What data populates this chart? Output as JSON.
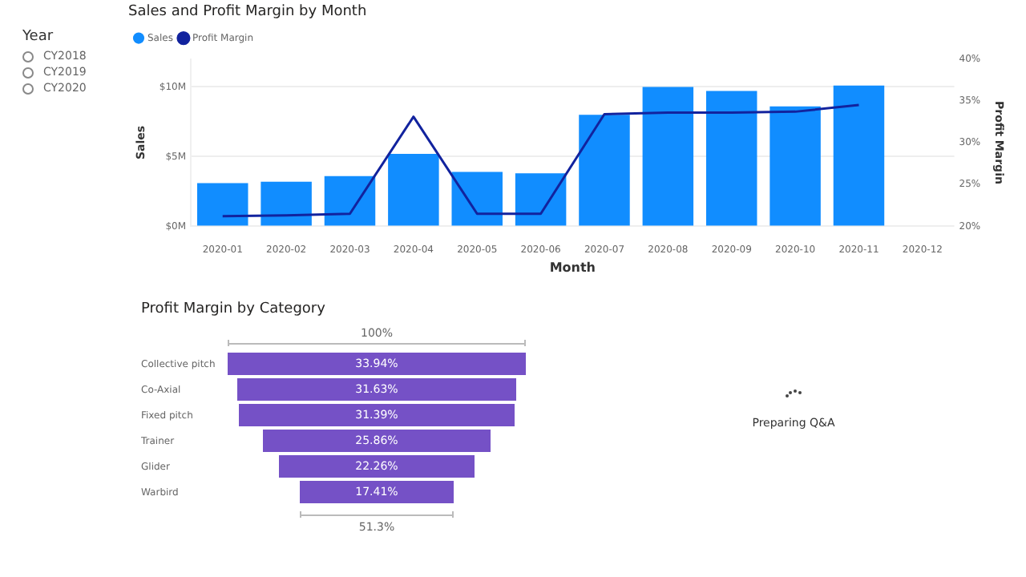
{
  "chart_data": [
    {
      "type": "other",
      "title": "Year",
      "categories": [
        "CY2018",
        "CY2019",
        "CY2020"
      ]
    },
    {
      "type": "bar",
      "title": "Sales and Profit Margin by Month",
      "xlabel": "Month",
      "ylabel": "Sales",
      "y2label": "Profit Margin",
      "categories": [
        "2020-01",
        "2020-02",
        "2020-03",
        "2020-04",
        "2020-05",
        "2020-06",
        "2020-07",
        "2020-08",
        "2020-09",
        "2020-10",
        "2020-11",
        "2020-12"
      ],
      "series": [
        {
          "name": "Sales",
          "type": "bar",
          "color": "#118dff",
          "values": [
            3.1,
            3.2,
            3.6,
            5.2,
            3.9,
            3.8,
            8.0,
            10.0,
            9.7,
            8.6,
            10.1,
            null
          ]
        },
        {
          "name": "Profit Margin",
          "type": "line",
          "axis": "y2",
          "color": "#12239e",
          "values": [
            21.2,
            21.3,
            21.5,
            33.1,
            21.5,
            21.5,
            33.4,
            33.6,
            33.6,
            33.7,
            34.5,
            null
          ]
        }
      ],
      "ylim": [
        0,
        12
      ],
      "yticks": [
        {
          "value": 0,
          "label": "$0M"
        },
        {
          "value": 5,
          "label": "$5M"
        },
        {
          "value": 10,
          "label": "$10M"
        }
      ],
      "y2lim": [
        20,
        40
      ],
      "y2ticks": [
        {
          "value": 20,
          "label": "20%"
        },
        {
          "value": 25,
          "label": "25%"
        },
        {
          "value": 30,
          "label": "30%"
        },
        {
          "value": 35,
          "label": "35%"
        },
        {
          "value": 40,
          "label": "40%"
        }
      ],
      "grid": "y",
      "legend": "top left",
      "marker": "none",
      "line_style": "solid"
    },
    {
      "type": "other",
      "title": "Profit Margin by Category",
      "categories": [
        "Collective pitch",
        "Co-Axial",
        "Fixed pitch",
        "Trainer",
        "Glider",
        "Warbird"
      ],
      "values": [
        33.94,
        31.63,
        31.39,
        25.86,
        22.26,
        17.41
      ],
      "value_labels": [
        "33.94%",
        "31.63%",
        "31.39%",
        "25.86%",
        "22.26%",
        "17.41%"
      ],
      "color": "#7551c6",
      "annotations": [
        "100%",
        "51.3%"
      ]
    },
    {
      "type": "other",
      "annotations": [
        "Preparing Q&A"
      ]
    }
  ]
}
